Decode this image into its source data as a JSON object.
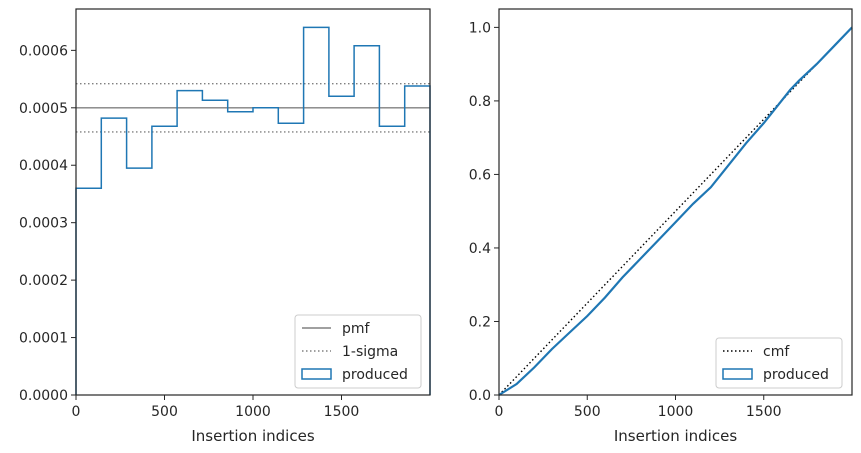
{
  "chart_data": [
    {
      "type": "step",
      "xlabel": "Insertion indices",
      "ylabel": "",
      "xlim": [
        0,
        2000
      ],
      "ylim": [
        0,
        0.000672
      ],
      "x_ticks": [
        0,
        500,
        1000,
        1500
      ],
      "x_tick_labels": [
        "0",
        "500",
        "1000",
        "1500"
      ],
      "y_ticks": [
        0,
        0.0001,
        0.0002,
        0.0003,
        0.0004,
        0.0005,
        0.0006
      ],
      "y_tick_labels": [
        "0.0000",
        "0.0001",
        "0.0002",
        "0.0003",
        "0.0004",
        "0.0005",
        "0.0006"
      ],
      "bin_edges": [
        0,
        143,
        286,
        429,
        571,
        714,
        857,
        1000,
        1143,
        1286,
        1429,
        1571,
        1714,
        1857,
        2000
      ],
      "series": [
        {
          "name": "produced",
          "style": "step-histogram",
          "color": "#1f77b4",
          "values": [
            0.00036,
            0.000482,
            0.000395,
            0.000468,
            0.00053,
            0.000513,
            0.000493,
            0.0005,
            0.000473,
            0.00064,
            0.00052,
            0.000608,
            0.000468,
            0.000538
          ]
        }
      ],
      "reference_lines": [
        {
          "name": "pmf",
          "y": 0.0005,
          "style": "solid",
          "color": "#808080"
        },
        {
          "name": "1-sigma",
          "y": [
            0.000458,
            0.000542
          ],
          "style": "dotted",
          "color": "#808080"
        }
      ],
      "legend": {
        "location": "lower-right",
        "entries": [
          {
            "label": "pmf",
            "kind": "line-solid",
            "color": "#808080"
          },
          {
            "label": "1-sigma",
            "kind": "line-dotted",
            "color": "#808080"
          },
          {
            "label": "produced",
            "kind": "patch",
            "color": "#1f77b4"
          }
        ]
      },
      "grid": false
    },
    {
      "type": "line",
      "xlabel": "Insertion indices",
      "ylabel": "",
      "xlim": [
        0,
        2000
      ],
      "ylim": [
        0,
        1.05
      ],
      "x_ticks": [
        0,
        500,
        1000,
        1500
      ],
      "x_tick_labels": [
        "0",
        "500",
        "1000",
        "1500"
      ],
      "y_ticks": [
        0,
        0.2,
        0.4,
        0.6,
        0.8,
        1.0
      ],
      "y_tick_labels": [
        "0.0",
        "0.2",
        "0.4",
        "0.6",
        "0.8",
        "1.0"
      ],
      "series": [
        {
          "name": "cmf",
          "style": "dotted",
          "color": "#000000",
          "x": [
            0,
            2000
          ],
          "y": [
            0,
            1.0
          ]
        },
        {
          "name": "produced",
          "style": "solid",
          "color": "#1f77b4",
          "x": [
            0,
            100,
            200,
            300,
            400,
            500,
            600,
            700,
            800,
            900,
            1000,
            1100,
            1200,
            1300,
            1400,
            1500,
            1600,
            1650,
            1700,
            1800,
            1900,
            2000
          ],
          "y": [
            0,
            0.03,
            0.075,
            0.125,
            0.17,
            0.215,
            0.265,
            0.32,
            0.37,
            0.42,
            0.47,
            0.52,
            0.565,
            0.625,
            0.685,
            0.74,
            0.8,
            0.83,
            0.855,
            0.9,
            0.95,
            1.0
          ]
        }
      ],
      "legend": {
        "location": "lower-right",
        "entries": [
          {
            "label": "cmf",
            "kind": "line-dotted",
            "color": "#000000"
          },
          {
            "label": "produced",
            "kind": "patch",
            "color": "#1f77b4"
          }
        ]
      },
      "grid": false
    }
  ]
}
